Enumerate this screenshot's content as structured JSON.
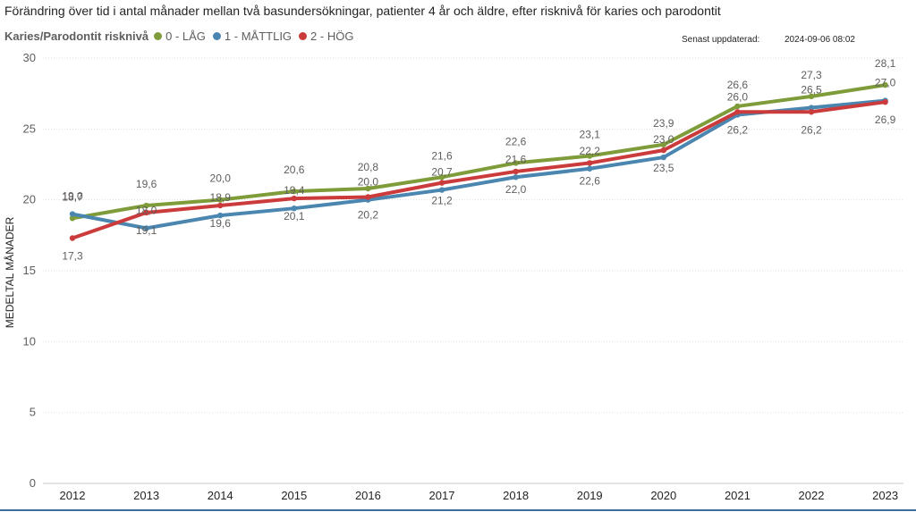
{
  "page": {
    "title": "Förändring över tid i antal månader mellan två basundersökningar, patienter 4 år och äldre, efter risknivå för karies och parodontit",
    "updated_label": "Senast uppdaterad:",
    "updated_value": "2024-09-06 08:02"
  },
  "chart_data": {
    "type": "line",
    "title": "Förändring över tid i antal månader mellan två basundersökningar, patienter 4 år och äldre, efter risknivå för karies och parodontit",
    "xlabel": "",
    "ylabel": "MEDELTAL MÅNADER",
    "legend_title": "Karies/Parodontit risknivå",
    "legend_position": "top-left",
    "ylim": [
      0,
      30
    ],
    "yticks": [
      0,
      5,
      10,
      15,
      20,
      25,
      30
    ],
    "grid": true,
    "categories": [
      "2012",
      "2013",
      "2014",
      "2015",
      "2016",
      "2017",
      "2018",
      "2019",
      "2020",
      "2021",
      "2022",
      "2023"
    ],
    "series": [
      {
        "name": "0 - LÅG",
        "color": "#7f9c3a",
        "values": [
          18.7,
          19.6,
          20.0,
          20.6,
          20.8,
          21.6,
          22.6,
          23.1,
          23.9,
          26.6,
          27.3,
          28.1
        ],
        "labels": [
          "18,7",
          "19,6",
          "20,0",
          "20,6",
          "20,8",
          "21,6",
          "22,6",
          "23,1",
          "23,9",
          "26,6",
          "27,3",
          "28,1"
        ]
      },
      {
        "name": "1 - MÅTTLIG",
        "color": "#4a86b0",
        "values": [
          19.0,
          18.0,
          18.9,
          19.4,
          20.0,
          20.7,
          21.6,
          22.2,
          23.0,
          26.0,
          26.5,
          27.0
        ],
        "labels": [
          "19,0",
          "18,0",
          "18,9",
          "19,4",
          "20,0",
          "20,7",
          "21,6",
          "22,2",
          "23,0",
          "26,0",
          "26,5",
          "27,0"
        ]
      },
      {
        "name": "2 - HÖG",
        "color": "#cc3b3b",
        "values": [
          17.3,
          19.1,
          19.6,
          20.1,
          20.2,
          21.2,
          22.0,
          22.6,
          23.5,
          26.2,
          26.2,
          26.9
        ],
        "labels": [
          "17,3",
          "19,1",
          "19,6",
          "20,1",
          "20,2",
          "21,2",
          "22,0",
          "22,6",
          "23,5",
          "26,2",
          "26,2",
          "26,9"
        ]
      }
    ]
  }
}
